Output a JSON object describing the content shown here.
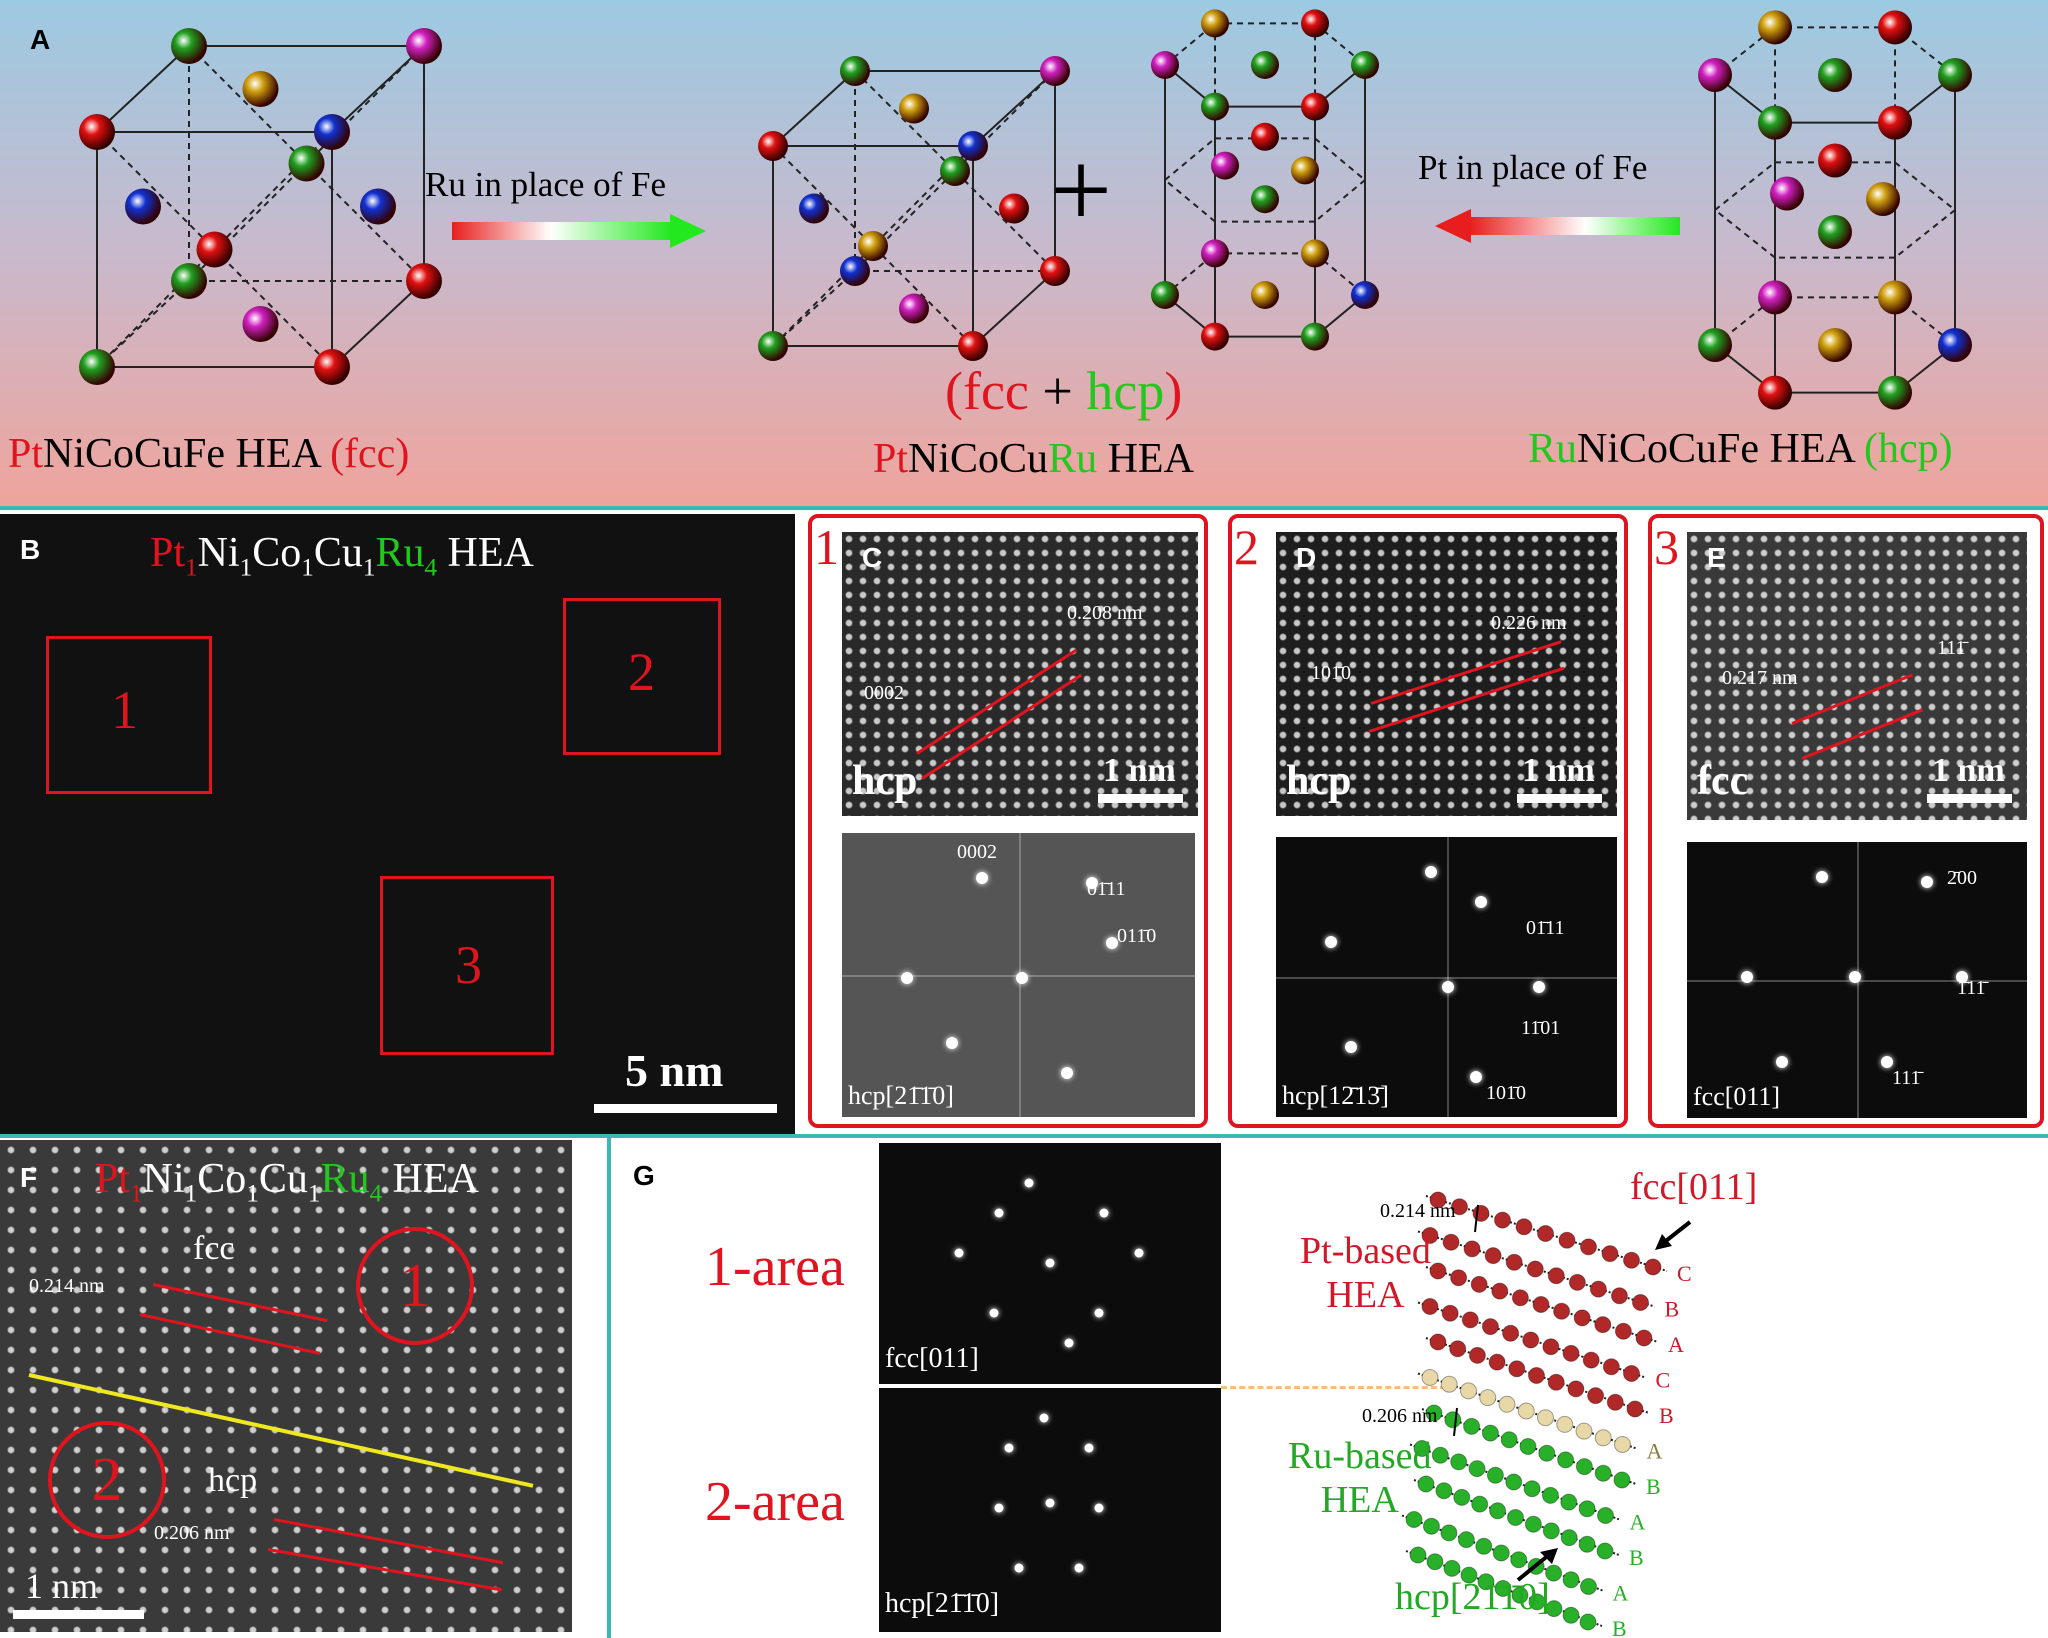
{
  "panelA": {
    "letter": "A",
    "arrow1_label": "Ru in place of Fe",
    "arrow2_label": "Pt in place of Fe",
    "plus": "+",
    "left": {
      "pt": "Pt",
      "rest": "NiCoCuFe HEA ",
      "phase": "(fcc)"
    },
    "mid": {
      "phase_open": "(fcc",
      "plus": " + ",
      "hcp": "hcp",
      "phase_close": ")",
      "pt": "Pt",
      "rest": "NiCoCu",
      "ru": "Ru",
      "tail": " HEA"
    },
    "right": {
      "ru": "Ru",
      "rest": "NiCoCuFe HEA ",
      "phase": "(hcp)"
    },
    "colors": {
      "Pt": "#e0141e",
      "Ru": "#22c81e"
    }
  },
  "panelB": {
    "letter": "B",
    "title": {
      "pt": "Pt",
      "s1": "1",
      "ni": "Ni",
      "s2": "1",
      "co": "Co",
      "s3": "1",
      "cu": "Cu",
      "s4": "1",
      "ru": "Ru",
      "s5": "4",
      "tail": " HEA"
    },
    "regions": [
      "1",
      "2",
      "3"
    ],
    "scale": "5 nm"
  },
  "panelC": {
    "num": "1",
    "letter": "C",
    "phase": "hcp",
    "d": "0.208 nm",
    "plane": "0002",
    "scale": "1 nm",
    "fft": {
      "spots": [
        "0002",
        "01̄11",
        "011̄0"
      ],
      "axis": "hcp[21̄1̄0]"
    }
  },
  "panelD": {
    "num": "2",
    "letter": "D",
    "phase": "hcp",
    "d": "0.226 nm",
    "plane": "101̄0",
    "scale": "1 nm",
    "fft": {
      "spots": [
        "01̄11",
        "11̄01",
        "101̄0"
      ],
      "axis": "hcp[12̄13̄]"
    }
  },
  "panelE": {
    "num": "3",
    "letter": "E",
    "phase": "fcc",
    "d": "0.217 nm",
    "plane": "111̄",
    "scale": "1 nm",
    "fft": {
      "spots": [
        "2̄00",
        "1̄11̄",
        "111̄"
      ],
      "axis": "fcc[011]"
    }
  },
  "panelF": {
    "letter": "F",
    "title": {
      "pt": "Pt",
      "s1": "1",
      "ni": "Ni",
      "s2": "1",
      "co": "Co",
      "s3": "1",
      "cu": "Cu",
      "s4": "1",
      "ru": "Ru",
      "s5": "4",
      "tail": " HEA"
    },
    "fcc": "fcc",
    "hcp": "hcp",
    "d_fcc": "0.214 nm",
    "d_hcp": "0.206 nm",
    "area1": "1",
    "area2": "2",
    "scale": "1 nm"
  },
  "panelG": {
    "letter": "G",
    "area1": "1-area",
    "area2": "2-area",
    "fft1_axis": "fcc[011]",
    "fft2_axis": "hcp[21̄1̄0]",
    "pt_based": [
      "Pt-based",
      "HEA"
    ],
    "ru_based": [
      "Ru-based",
      "HEA"
    ],
    "d_top": "0.214 nm",
    "d_bottom": "0.206 nm",
    "fcc_dir": "fcc[011]",
    "hcp_dir": "hcp[21̄1̄0]",
    "stacking": [
      "C",
      "B",
      "A",
      "C",
      "B",
      "A",
      "B",
      "A",
      "B",
      "A",
      "B"
    ]
  }
}
